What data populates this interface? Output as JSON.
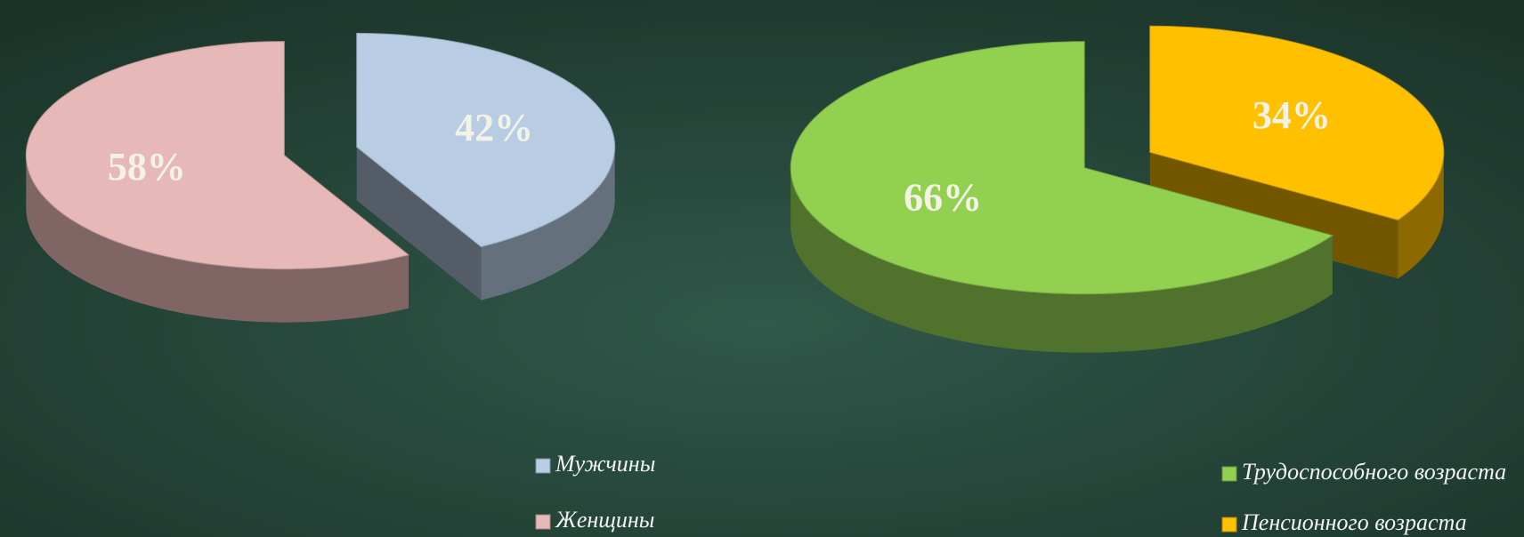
{
  "chart_data": [
    {
      "type": "pie",
      "categories": [
        "Мужчины",
        "Женщины"
      ],
      "values": [
        42,
        58
      ],
      "value_labels": [
        "42%",
        "58%"
      ],
      "colors": [
        "#b8cce4",
        "#e6b9b8"
      ]
    },
    {
      "type": "pie",
      "categories": [
        "Пенсионного возраста",
        "Трудоспособного возраста"
      ],
      "values": [
        34,
        66
      ],
      "value_labels": [
        "34%",
        "66%"
      ],
      "colors": [
        "#ffc000",
        "#92d050"
      ]
    }
  ]
}
